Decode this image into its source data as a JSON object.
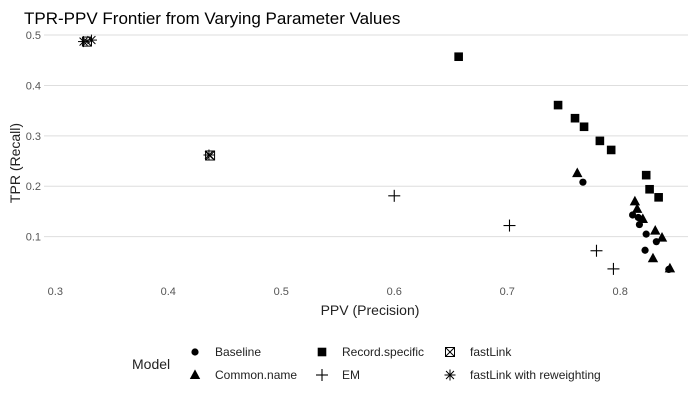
{
  "chart_data": {
    "type": "scatter",
    "title": "TPR-PPV Frontier from Varying Parameter Values",
    "xlabel": "PPV (Precision)",
    "ylabel": "TPR (Recall)",
    "xlim": [
      0.29,
      0.86
    ],
    "ylim": [
      0.01,
      0.51
    ],
    "x_ticks": [
      0.3,
      0.4,
      0.5,
      0.6,
      0.7,
      0.8
    ],
    "y_ticks": [
      0.1,
      0.2,
      0.3,
      0.4,
      0.5
    ],
    "grid": "horizontal",
    "legend": {
      "title": "Model",
      "placement": "bottom",
      "rows": [
        [
          "Baseline",
          "Record.specific",
          "fastLink"
        ],
        [
          "Common.name",
          "EM",
          "fastLink with reweighting"
        ]
      ]
    },
    "series": [
      {
        "name": "Baseline",
        "marker": "circle",
        "points": [
          [
            0.767,
            0.208
          ],
          [
            0.811,
            0.143
          ],
          [
            0.816,
            0.138
          ],
          [
            0.817,
            0.124
          ],
          [
            0.823,
            0.105
          ],
          [
            0.822,
            0.073
          ],
          [
            0.832,
            0.09
          ],
          [
            0.843,
            0.035
          ]
        ]
      },
      {
        "name": "Common.name",
        "marker": "triangle",
        "points": [
          [
            0.762,
            0.226
          ],
          [
            0.813,
            0.17
          ],
          [
            0.815,
            0.155
          ],
          [
            0.82,
            0.135
          ],
          [
            0.831,
            0.112
          ],
          [
            0.837,
            0.098
          ],
          [
            0.829,
            0.057
          ],
          [
            0.844,
            0.037
          ]
        ]
      },
      {
        "name": "Record.specific",
        "marker": "square",
        "points": [
          [
            0.657,
            0.457
          ],
          [
            0.745,
            0.361
          ],
          [
            0.76,
            0.335
          ],
          [
            0.768,
            0.318
          ],
          [
            0.782,
            0.29
          ],
          [
            0.792,
            0.272
          ],
          [
            0.823,
            0.222
          ],
          [
            0.826,
            0.194
          ],
          [
            0.834,
            0.178
          ]
        ]
      },
      {
        "name": "EM",
        "marker": "plus",
        "points": [
          [
            0.6,
            0.181
          ],
          [
            0.702,
            0.122
          ],
          [
            0.779,
            0.072
          ],
          [
            0.794,
            0.036
          ]
        ]
      },
      {
        "name": "fastLink",
        "marker": "boxx",
        "points": [
          [
            0.328,
            0.487
          ],
          [
            0.437,
            0.261
          ]
        ]
      },
      {
        "name": "fastLink with reweighting",
        "marker": "asterisk",
        "points": [
          [
            0.325,
            0.487
          ],
          [
            0.332,
            0.49
          ],
          [
            0.436,
            0.262
          ]
        ]
      }
    ]
  }
}
